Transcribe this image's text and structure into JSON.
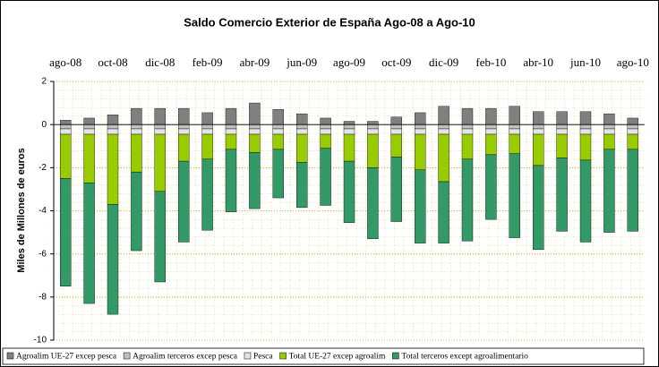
{
  "chart_data": {
    "type": "bar",
    "stacked": true,
    "title": "Saldo Comercio Exterior de España Ago-08 a Ago-10",
    "y_label": "Miles de Millones de euros",
    "categories": [
      "ago-08",
      null,
      "oct-08",
      null,
      "dic-08",
      null,
      "feb-09",
      null,
      "abr-09",
      null,
      "jun-09",
      null,
      "ago-09",
      null,
      "oct-09",
      null,
      "dic-09",
      null,
      "feb-10",
      null,
      "abr-10",
      null,
      "jun-10",
      null,
      "ago-10"
    ],
    "series": [
      {
        "name": "Agroalim UE-27 excep pesca",
        "color": "#808080",
        "values": [
          0.2,
          0.3,
          0.45,
          0.75,
          0.75,
          0.75,
          0.55,
          0.75,
          1.0,
          0.7,
          0.5,
          0.3,
          0.15,
          0.15,
          0.35,
          0.55,
          0.85,
          0.75,
          0.75,
          0.85,
          0.6,
          0.6,
          0.6,
          0.5,
          0.3
        ]
      },
      {
        "name": "Agroalim terceros excep pesca",
        "color": "#c0c0c0",
        "values": [
          -0.2,
          -0.2,
          -0.2,
          -0.2,
          -0.2,
          -0.2,
          -0.2,
          -0.2,
          -0.2,
          -0.2,
          -0.2,
          -0.2,
          -0.2,
          -0.2,
          -0.2,
          -0.2,
          -0.2,
          -0.2,
          -0.2,
          -0.2,
          -0.2,
          -0.2,
          -0.2,
          -0.2,
          -0.2
        ]
      },
      {
        "name": "Pesca",
        "color": "#e4e4e4",
        "values": [
          -0.25,
          -0.25,
          -0.25,
          -0.25,
          -0.25,
          -0.25,
          -0.25,
          -0.25,
          -0.25,
          -0.25,
          -0.25,
          -0.25,
          -0.25,
          -0.25,
          -0.25,
          -0.25,
          -0.25,
          -0.25,
          -0.25,
          -0.25,
          -0.25,
          -0.25,
          -0.25,
          -0.25,
          -0.25
        ]
      },
      {
        "name": "Total UE-27 excep agroalim",
        "color": "#99cc00",
        "values": [
          -2.05,
          -2.25,
          -3.25,
          -1.75,
          -2.65,
          -1.25,
          -1.15,
          -0.7,
          -0.85,
          -0.7,
          -1.3,
          -0.65,
          -1.25,
          -1.55,
          -1.05,
          -1.65,
          -2.2,
          -1.15,
          -0.95,
          -0.9,
          -1.45,
          -1.1,
          -1.2,
          -0.7,
          -0.7
        ]
      },
      {
        "name": "Total terceros except agroalimentario",
        "color": "#339966",
        "values": [
          -5.0,
          -5.6,
          -5.1,
          -3.65,
          -4.2,
          -3.75,
          -3.3,
          -2.9,
          -2.6,
          -2.25,
          -2.1,
          -2.65,
          -2.85,
          -3.3,
          -3.0,
          -3.4,
          -2.85,
          -3.8,
          -3.0,
          -3.9,
          -3.9,
          -3.4,
          -3.8,
          -3.85,
          -3.8
        ]
      }
    ],
    "ylim": [
      -10,
      2
    ],
    "yticks": [
      -10,
      -8,
      -6,
      -4,
      -2,
      0,
      2
    ],
    "grid": true,
    "legend": "bottom"
  }
}
